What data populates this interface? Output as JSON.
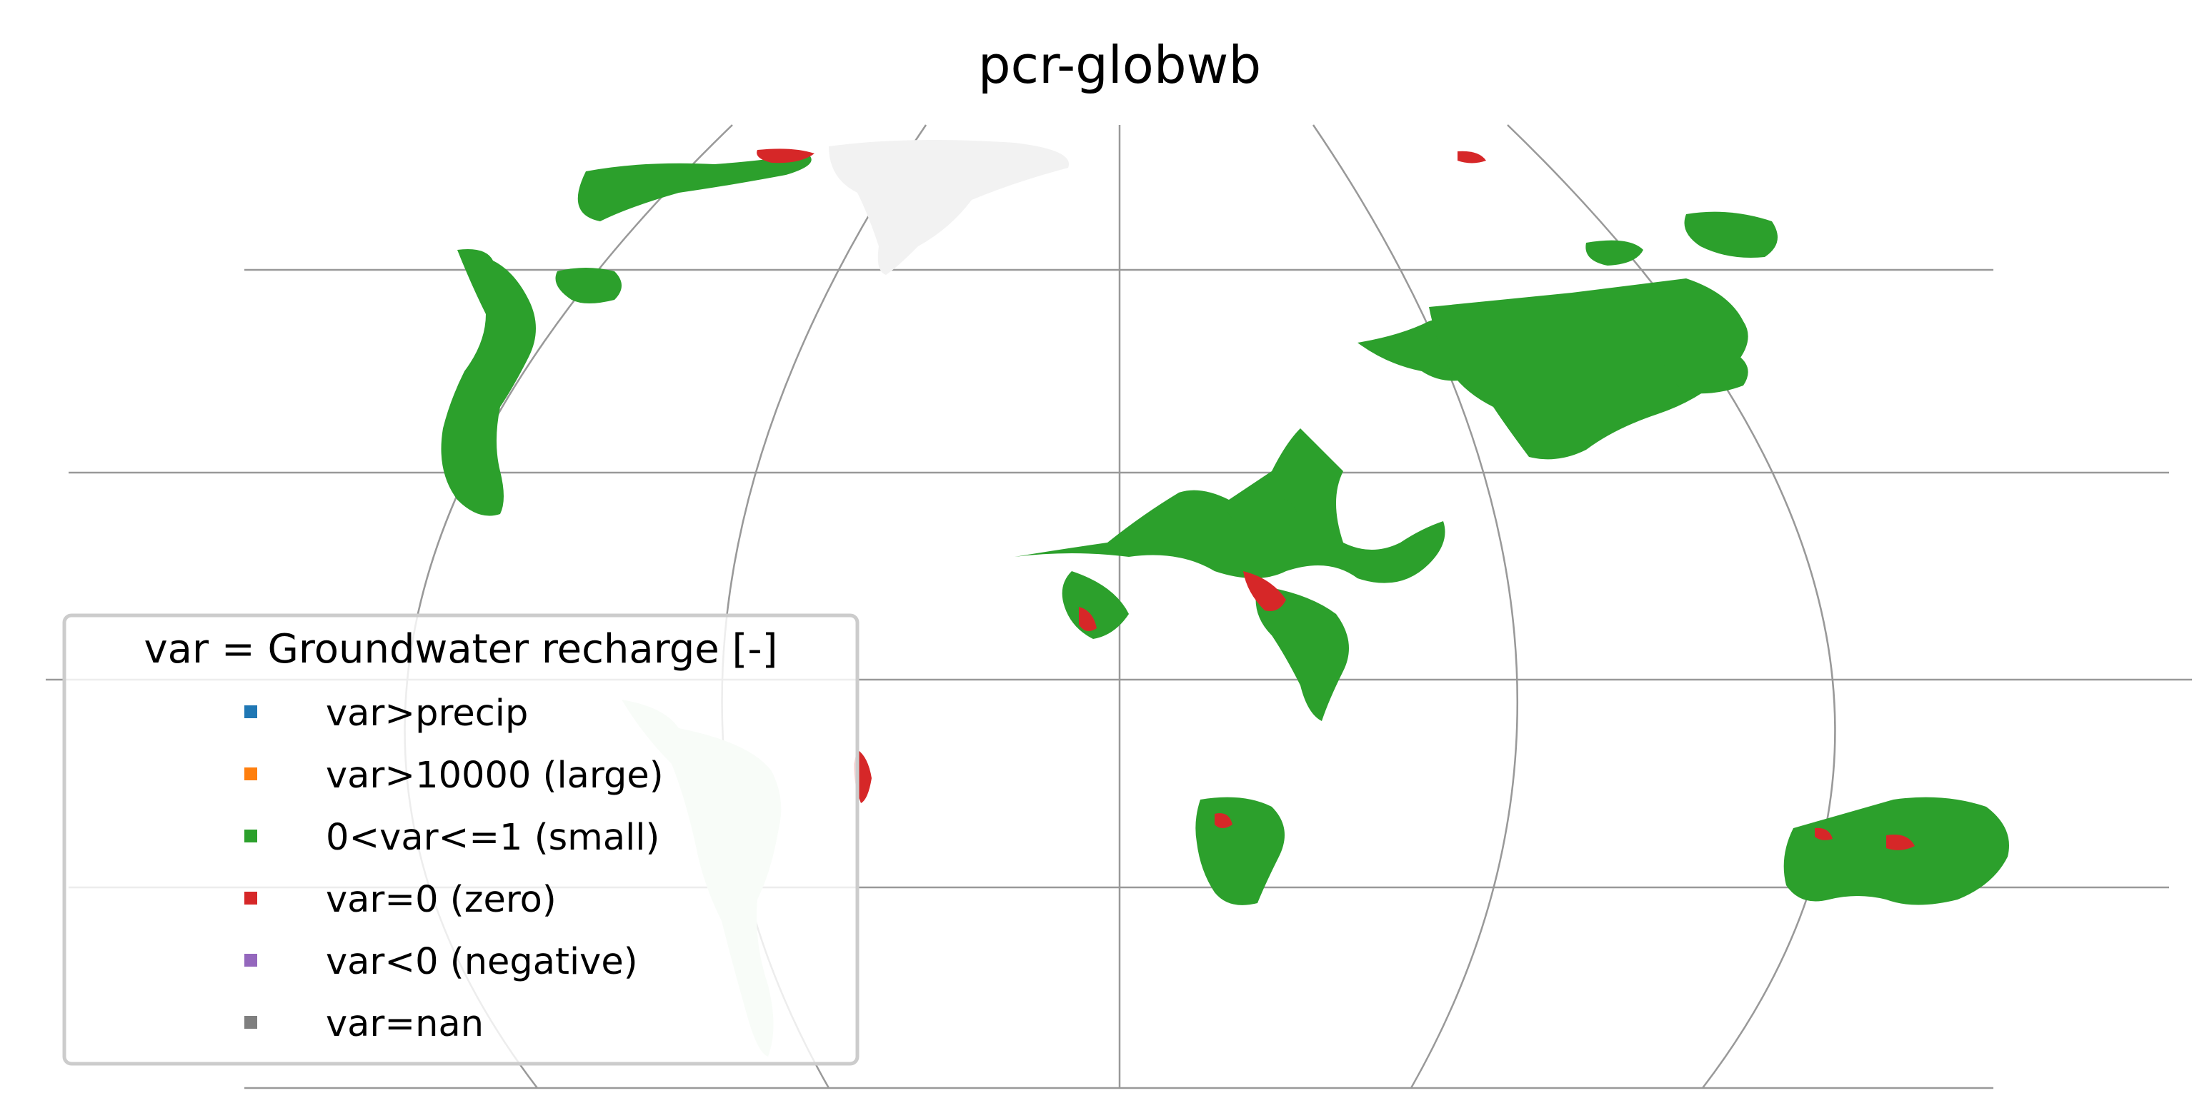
{
  "title": "pcr-globwb",
  "legend": {
    "title": "var = Groundwater recharge [-]",
    "placement": "lower-left",
    "entries": [
      {
        "label": "var>precip",
        "color": "#1f77b4"
      },
      {
        "label": "var>10000 (large)",
        "color": "#ff7f0e"
      },
      {
        "label": "0<var<=1 (small)",
        "color": "#2ca02c"
      },
      {
        "label": "var=0 (zero)",
        "color": "#d62728"
      },
      {
        "label": "var<0 (negative)",
        "color": "#9467bd"
      },
      {
        "label": "var=nan",
        "color": "#7f7f7f"
      }
    ]
  },
  "map": {
    "projection": "Robinson-like (rotated, global)",
    "graticule": true,
    "land_outline_color": "#f2f2f2",
    "graticule_color": "#999999"
  },
  "colors": {
    "small": "#2ca02c",
    "zero": "#d62728"
  }
}
